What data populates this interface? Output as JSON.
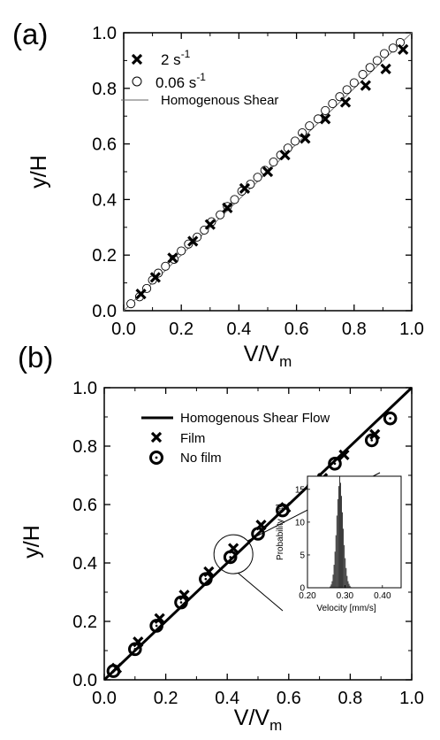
{
  "chart_data": [
    {
      "panel_label": "(a)",
      "type": "scatter",
      "xlabel": "V/V",
      "xlabel_sub": "m",
      "ylabel": "y/H",
      "xlim": [
        0,
        1.0
      ],
      "ylim": [
        0,
        1.0
      ],
      "x_ticks": [
        "0.0",
        "0.2",
        "0.4",
        "0.6",
        "0.8",
        "1.0"
      ],
      "y_ticks": [
        "0.0",
        "0.2",
        "0.4",
        "0.6",
        "0.8",
        "1.0"
      ],
      "legend_position": "top-left",
      "legend": [
        {
          "label": "2 s",
          "sup": "-1",
          "marker": "x-bold"
        },
        {
          "label": "0.06 s",
          "sup": "-1",
          "marker": "open-circle"
        },
        {
          "label": "Homogenous Shear",
          "marker": "thin-line"
        }
      ],
      "series": [
        {
          "name": "2 s-1",
          "marker": "x-bold",
          "points": [
            [
              0.06,
              0.06
            ],
            [
              0.11,
              0.12
            ],
            [
              0.17,
              0.19
            ],
            [
              0.24,
              0.25
            ],
            [
              0.3,
              0.31
            ],
            [
              0.36,
              0.37
            ],
            [
              0.42,
              0.44
            ],
            [
              0.5,
              0.5
            ],
            [
              0.56,
              0.56
            ],
            [
              0.63,
              0.62
            ],
            [
              0.7,
              0.69
            ],
            [
              0.77,
              0.75
            ],
            [
              0.84,
              0.81
            ],
            [
              0.91,
              0.87
            ],
            [
              0.97,
              0.94
            ]
          ]
        },
        {
          "name": "0.06 s-1",
          "marker": "open-circle",
          "points": [
            [
              0.025,
              0.025
            ],
            [
              0.055,
              0.05
            ],
            [
              0.08,
              0.08
            ],
            [
              0.1,
              0.11
            ],
            [
              0.12,
              0.135
            ],
            [
              0.145,
              0.16
            ],
            [
              0.175,
              0.185
            ],
            [
              0.2,
              0.215
            ],
            [
              0.225,
              0.24
            ],
            [
              0.255,
              0.265
            ],
            [
              0.28,
              0.29
            ],
            [
              0.305,
              0.32
            ],
            [
              0.335,
              0.345
            ],
            [
              0.36,
              0.375
            ],
            [
              0.385,
              0.4
            ],
            [
              0.41,
              0.43
            ],
            [
              0.44,
              0.455
            ],
            [
              0.465,
              0.48
            ],
            [
              0.49,
              0.505
            ],
            [
              0.52,
              0.535
            ],
            [
              0.545,
              0.56
            ],
            [
              0.57,
              0.585
            ],
            [
              0.595,
              0.61
            ],
            [
              0.62,
              0.64
            ],
            [
              0.645,
              0.665
            ],
            [
              0.675,
              0.69
            ],
            [
              0.7,
              0.72
            ],
            [
              0.725,
              0.745
            ],
            [
              0.75,
              0.77
            ],
            [
              0.775,
              0.795
            ],
            [
              0.8,
              0.82
            ],
            [
              0.83,
              0.85
            ],
            [
              0.855,
              0.875
            ],
            [
              0.88,
              0.9
            ],
            [
              0.905,
              0.925
            ],
            [
              0.935,
              0.945
            ],
            [
              0.96,
              0.965
            ]
          ]
        },
        {
          "name": "Homogenous Shear",
          "marker": "thin-line",
          "points": [
            [
              0,
              0
            ],
            [
              1,
              1
            ]
          ]
        }
      ]
    },
    {
      "panel_label": "(b)",
      "type": "scatter",
      "xlabel": "V/V",
      "xlabel_sub": "m",
      "ylabel": "y/H",
      "xlim": [
        0,
        1.0
      ],
      "ylim": [
        0,
        1.0
      ],
      "x_ticks": [
        "0.0",
        "0.2",
        "0.4",
        "0.6",
        "0.8",
        "1.0"
      ],
      "y_ticks": [
        "0.0",
        "0.2",
        "0.4",
        "0.6",
        "0.8",
        "1.0"
      ],
      "legend_position": "top-left",
      "legend": [
        {
          "label": "Homogenous Shear Flow",
          "marker": "thick-line"
        },
        {
          "label": "Film",
          "marker": "x-bold"
        },
        {
          "label": "No film",
          "marker": "bullseye"
        }
      ],
      "series": [
        {
          "name": "Homogenous Shear Flow",
          "marker": "thick-line",
          "points": [
            [
              0,
              0
            ],
            [
              1,
              1
            ]
          ]
        },
        {
          "name": "Film",
          "marker": "x-bold",
          "points": [
            [
              0.04,
              0.04
            ],
            [
              0.11,
              0.13
            ],
            [
              0.18,
              0.21
            ],
            [
              0.26,
              0.29
            ],
            [
              0.34,
              0.37
            ],
            [
              0.42,
              0.45
            ],
            [
              0.51,
              0.53
            ],
            [
              0.59,
              0.59
            ],
            [
              0.71,
              0.69
            ],
            [
              0.78,
              0.77
            ],
            [
              0.88,
              0.84
            ]
          ]
        },
        {
          "name": "No film",
          "marker": "bullseye",
          "points": [
            [
              0.03,
              0.03
            ],
            [
              0.1,
              0.105
            ],
            [
              0.17,
              0.185
            ],
            [
              0.25,
              0.265
            ],
            [
              0.33,
              0.345
            ],
            [
              0.41,
              0.42
            ],
            [
              0.5,
              0.5
            ],
            [
              0.58,
              0.58
            ],
            [
              0.68,
              0.66
            ],
            [
              0.75,
              0.74
            ],
            [
              0.87,
              0.82
            ],
            [
              0.93,
              0.895
            ]
          ]
        }
      ],
      "zoom_circle_center": [
        0.42,
        0.43
      ],
      "inset": {
        "type": "histogram",
        "xlabel": "Velocity [mm/s]",
        "ylabel": "Probability [%]",
        "xlim": [
          0.2,
          0.45
        ],
        "ylim": [
          0,
          17
        ],
        "x_ticks": [
          "0.20",
          "0.30",
          "0.40"
        ],
        "y_ticks": [
          "0",
          "5",
          "10",
          "15"
        ],
        "bin_start": 0.26,
        "bin_width": 0.0025,
        "values": [
          0.2,
          0.5,
          1,
          2,
          3.5,
          5.5,
          8,
          11,
          13.5,
          15.5,
          17,
          16,
          14,
          11.5,
          9,
          6.5,
          4.5,
          3,
          1.8,
          1,
          0.6,
          0.3,
          0.1
        ]
      }
    }
  ]
}
